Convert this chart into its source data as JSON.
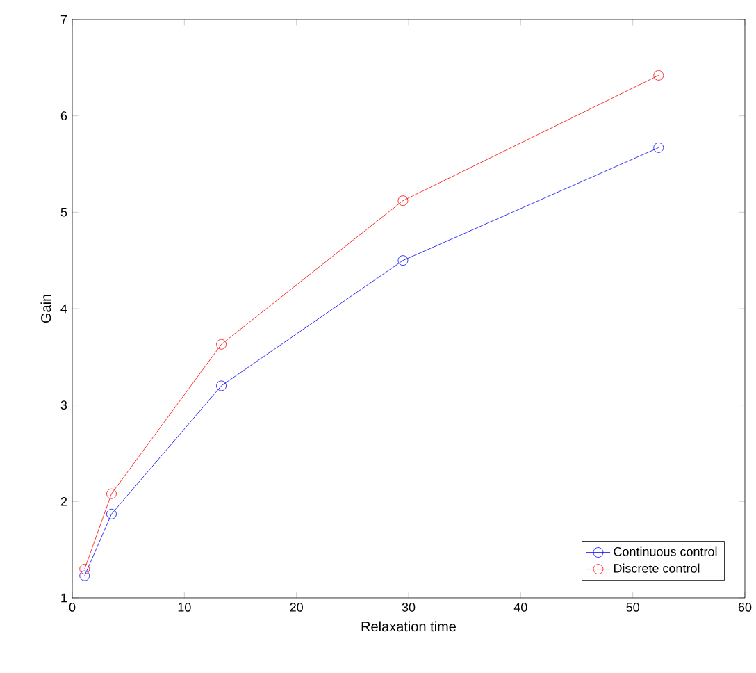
{
  "chart_data": {
    "type": "line",
    "xlabel": "Relaxation time",
    "ylabel": "Gain",
    "xlim": [
      0,
      60
    ],
    "xticks": [
      0,
      10,
      20,
      30,
      40,
      50,
      60
    ],
    "ylim": [
      1,
      7
    ],
    "yticks": [
      1,
      2,
      3,
      4,
      5,
      6,
      7
    ],
    "marker": "circle",
    "legend": "bottom right",
    "grid": false,
    "series": [
      {
        "name": "Continuous control",
        "color": "#0000ff",
        "x": [
          1.1,
          3.5,
          13.3,
          29.5,
          52.3
        ],
        "values": [
          1.23,
          1.87,
          3.2,
          4.5,
          5.67
        ]
      },
      {
        "name": "Discrete control",
        "color": "#ff0000",
        "x": [
          1.1,
          3.5,
          13.3,
          29.5,
          52.3
        ],
        "values": [
          1.3,
          2.08,
          3.63,
          5.12,
          6.42
        ]
      }
    ]
  }
}
